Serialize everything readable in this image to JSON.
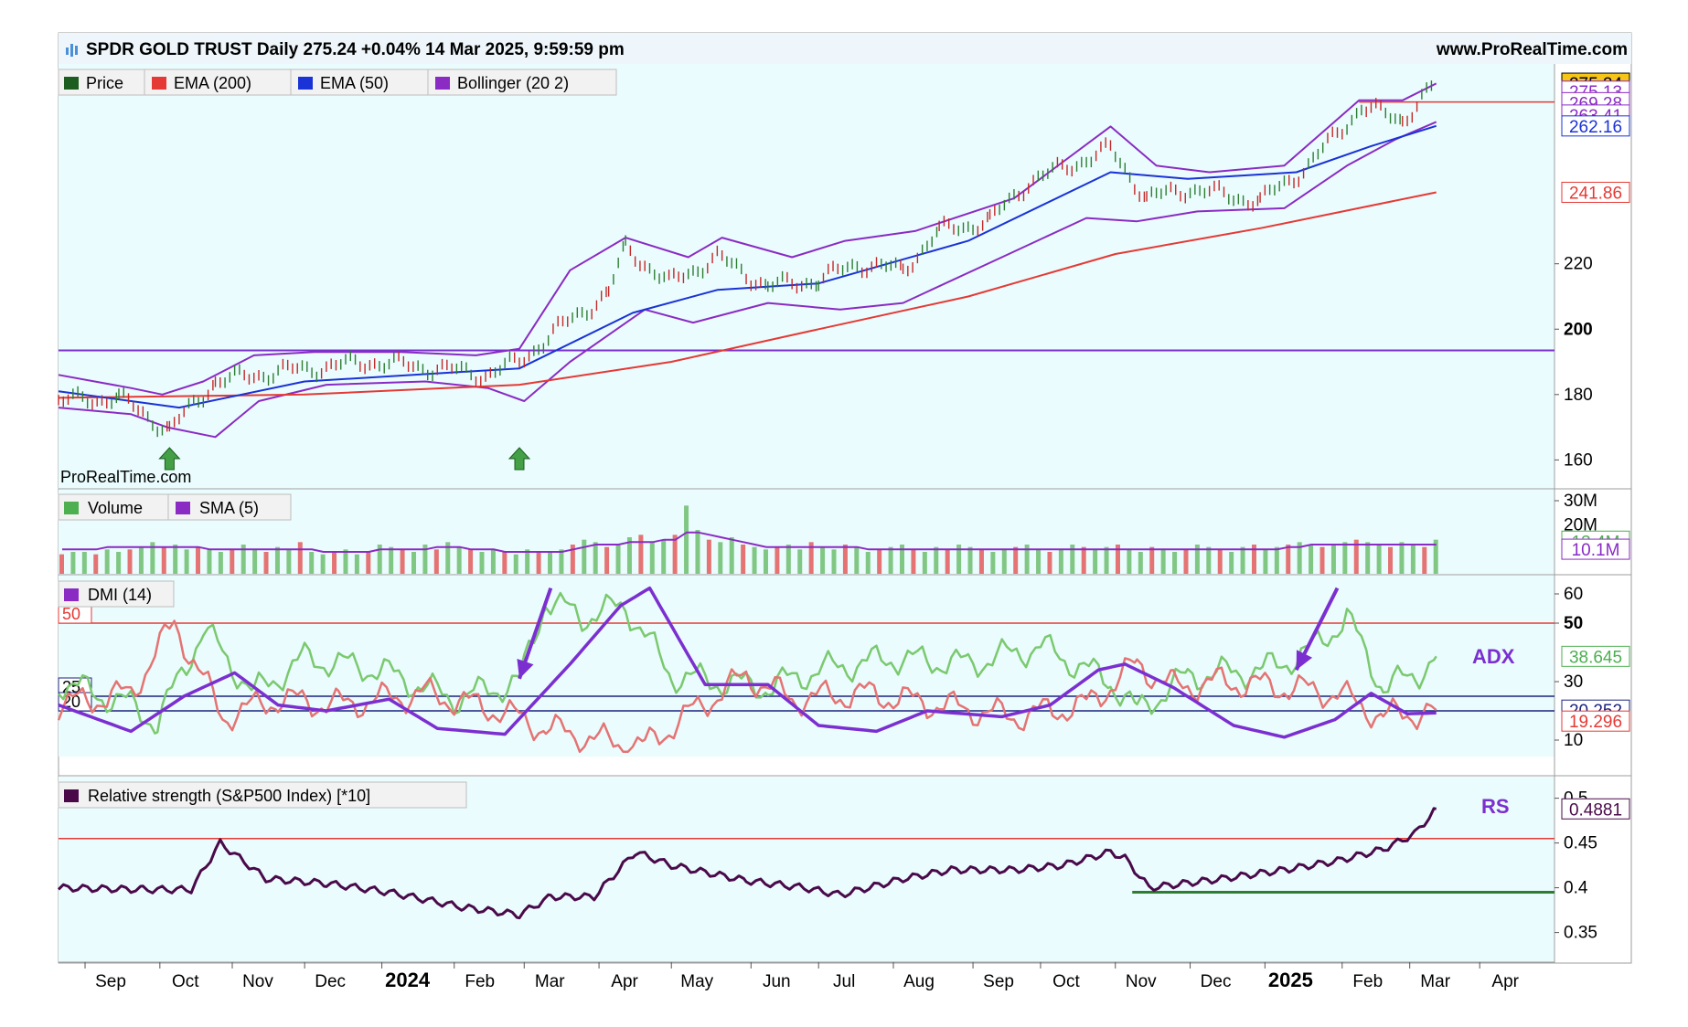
{
  "header": {
    "title": "SPDR GOLD TRUST Daily 275.24 +0.04% 14 Mar 2025, 9:59:59 pm",
    "site": "www.ProRealTime.com",
    "watermark": "ProRealTime.com"
  },
  "chart_data": [
    {
      "type": "line",
      "panel": "price",
      "title": "",
      "legend": [
        "Price",
        "EMA (200)",
        "EMA (50)",
        "Bollinger (20 2)"
      ],
      "colors": {
        "price": "#2e7d32",
        "ema200": "#e53935",
        "ema50": "#1a33d6",
        "bollinger": "#8a2bc4",
        "level": "#7b2fd0"
      },
      "ylim": [
        152,
        280
      ],
      "yticks": [
        160,
        180,
        200,
        220
      ],
      "ytick_labels": [
        "160",
        "180",
        "200",
        "220"
      ],
      "level_line": 193.5,
      "resistance_line": 269.5,
      "markers": [
        {
          "x": "2023-10-06",
          "label": "up-arrow"
        },
        {
          "x": "2024-02-28",
          "label": "up-arrow"
        }
      ],
      "series": [
        {
          "name": "Price",
          "x": [
            "2023-08-21",
            "2023-09-15",
            "2023-10-06",
            "2023-10-25",
            "2023-11-20",
            "2023-12-04",
            "2023-12-28",
            "2024-01-25",
            "2024-02-14",
            "2024-02-28",
            "2024-03-15",
            "2024-04-05",
            "2024-04-12",
            "2024-04-30",
            "2024-05-20",
            "2024-06-10",
            "2024-07-01",
            "2024-07-17",
            "2024-08-05",
            "2024-08-20",
            "2024-09-10",
            "2024-09-26",
            "2024-10-30",
            "2024-11-14",
            "2024-12-02",
            "2024-12-31",
            "2025-01-20",
            "2025-02-11",
            "2025-02-28",
            "2025-03-14"
          ],
          "y": [
            178,
            179,
            169,
            184,
            187,
            188,
            190,
            188,
            186,
            190,
            200,
            211,
            225,
            214,
            222,
            213,
            215,
            220,
            218,
            230,
            233,
            245,
            255,
            240,
            243,
            239,
            250,
            268,
            264,
            275.24
          ]
        },
        {
          "name": "EMA (200)",
          "x": [
            "2023-08-21",
            "2023-12-01",
            "2024-02-28",
            "2024-05-01",
            "2024-07-01",
            "2024-09-01",
            "2024-11-01",
            "2025-01-01",
            "2025-03-14"
          ],
          "y": [
            179,
            180,
            183,
            190,
            200,
            210,
            223,
            231,
            241.86
          ]
        },
        {
          "name": "EMA (50)",
          "x": [
            "2023-08-21",
            "2023-10-10",
            "2023-12-01",
            "2024-02-28",
            "2024-04-15",
            "2024-05-20",
            "2024-07-01",
            "2024-09-01",
            "2024-10-30",
            "2024-12-01",
            "2025-01-15",
            "2025-02-15",
            "2025-03-14"
          ],
          "y": [
            181,
            176,
            184,
            188,
            205,
            212,
            214,
            227,
            248,
            246,
            248,
            256,
            262.16
          ]
        },
        {
          "name": "Bollinger (20 2)",
          "x": [
            "2023-08-21",
            "2023-09-20",
            "2023-10-03",
            "2023-10-20",
            "2023-11-10",
            "2023-12-05",
            "2024-01-10",
            "2024-02-10",
            "2024-02-28",
            "2024-03-20",
            "2024-04-12",
            "2024-05-08",
            "2024-05-22",
            "2024-06-20",
            "2024-07-12",
            "2024-08-10",
            "2024-09-20",
            "2024-10-30",
            "2024-11-18",
            "2024-12-10",
            "2025-01-10",
            "2025-02-10",
            "2025-02-28",
            "2025-03-14"
          ],
          "y": [
            186,
            182,
            180,
            184,
            192,
            193,
            193,
            192,
            194,
            218,
            228,
            222,
            228,
            222,
            227,
            230,
            240,
            262,
            250,
            248,
            250,
            270,
            270,
            275.13
          ]
        },
        {
          "name": "Bollinger (20 2) lower",
          "x": [
            "2023-08-21",
            "2023-09-20",
            "2023-10-05",
            "2023-10-25",
            "2023-11-12",
            "2023-12-10",
            "2024-01-20",
            "2024-02-15",
            "2024-03-01",
            "2024-03-20",
            "2024-04-20",
            "2024-05-10",
            "2024-06-10",
            "2024-07-10",
            "2024-08-05",
            "2024-09-15",
            "2024-10-20",
            "2024-11-10",
            "2024-12-05",
            "2025-01-10",
            "2025-02-05",
            "2025-02-25",
            "2025-03-14"
          ],
          "y": [
            176,
            174,
            170,
            167,
            178,
            183,
            184,
            182,
            178,
            190,
            206,
            202,
            208,
            206,
            208,
            222,
            234,
            233,
            236,
            237,
            250,
            258,
            263.41
          ]
        }
      ],
      "value_labels": [
        {
          "text": "275.24",
          "y": 275.24,
          "color": "#000000",
          "fill": "#f5c518"
        },
        {
          "text": "275.13",
          "y": 272.8,
          "color": "#8a2bc4",
          "fill": "#ffffff"
        },
        {
          "text": "269.28",
          "y": 269.28,
          "color": "#8a2bc4",
          "fill": "#ffffff"
        },
        {
          "text": "263.41",
          "y": 265.5,
          "color": "#8a2bc4",
          "fill": "#ffffff"
        },
        {
          "text": "262.16",
          "y": 262.16,
          "color": "#1a33d6",
          "fill": "#ffffff"
        },
        {
          "text": "241.86",
          "y": 241.86,
          "color": "#e53935",
          "fill": "#ffffff"
        }
      ]
    },
    {
      "type": "bar",
      "panel": "volume",
      "legend": [
        "Volume",
        "SMA (5)"
      ],
      "ylim": [
        0,
        33
      ],
      "yticks": [
        30
      ],
      "ytick_labels": [
        "30M"
      ],
      "level_guides": [
        20
      ],
      "level_guide_labels": [
        "20M"
      ],
      "values_millions": [
        8,
        9,
        9,
        8,
        10,
        9,
        10,
        11,
        13,
        11,
        12,
        10,
        11,
        10,
        9,
        10,
        12,
        10,
        9,
        11,
        10,
        13,
        9,
        8,
        9,
        10,
        8,
        9,
        12,
        11,
        10,
        9,
        12,
        10,
        13,
        11,
        10,
        9,
        10,
        9,
        8,
        10,
        9,
        9,
        10,
        12,
        14,
        13,
        11,
        12,
        15,
        16,
        13,
        14,
        16,
        28,
        18,
        14,
        13,
        15,
        12,
        11,
        10,
        11,
        12,
        10,
        13,
        11,
        10,
        12,
        11,
        9,
        10,
        11,
        12,
        10,
        9,
        11,
        10,
        12,
        11,
        10,
        9,
        10,
        11,
        12,
        10,
        9,
        10,
        12,
        11,
        10,
        11,
        12,
        10,
        9,
        11,
        10,
        9,
        10,
        12,
        11,
        10,
        9,
        11,
        12,
        10,
        11,
        12,
        13,
        12,
        11,
        12,
        13,
        14,
        13,
        12,
        11,
        13,
        12,
        11,
        14
      ],
      "sma": [
        10,
        10,
        10,
        10,
        11,
        11,
        11,
        11,
        11,
        11,
        11,
        11,
        11,
        10,
        10,
        10,
        10,
        10,
        10,
        10,
        10,
        10,
        10,
        9,
        9,
        9,
        9,
        9,
        10,
        10,
        10,
        10,
        10,
        11,
        11,
        11,
        10,
        10,
        10,
        9,
        9,
        9,
        9,
        9,
        9,
        10,
        11,
        12,
        12,
        12,
        13,
        13,
        13,
        14,
        14,
        17,
        17,
        16,
        15,
        14,
        13,
        12,
        11,
        11,
        11,
        11,
        11,
        11,
        11,
        11,
        11,
        10,
        10,
        10,
        10,
        10,
        10,
        10,
        10,
        10,
        10,
        10,
        10,
        10,
        10,
        10,
        10,
        10,
        10,
        10,
        10,
        10,
        10,
        10,
        10,
        10,
        10,
        10,
        10,
        10,
        10,
        10,
        10,
        10,
        10,
        10,
        10,
        10,
        11,
        11,
        12,
        12,
        12,
        12,
        12,
        12,
        12,
        12,
        12,
        12,
        12,
        12
      ],
      "value_labels": [
        {
          "text": "13.4M",
          "y": 13.4,
          "color": "#4caf50"
        },
        {
          "text": "10.1M",
          "y": 10.1,
          "color": "#8a2bc4"
        }
      ]
    },
    {
      "type": "line",
      "panel": "dmi",
      "legend": [
        "DMI (14)"
      ],
      "ylim": [
        5,
        65
      ],
      "yticks": [
        10,
        30,
        50,
        60
      ],
      "ytick_labels": [
        "10",
        "30",
        "50",
        "60"
      ],
      "levels": [
        {
          "y": 50,
          "label": "50",
          "color": "#e53935"
        },
        {
          "y": 25,
          "label": "25",
          "color": "#1a237e"
        },
        {
          "y": 20,
          "label": "20",
          "color": "#1a237e"
        }
      ],
      "annotation": "ADX",
      "arrows": [
        {
          "from_x": "2024-03-12",
          "from_y": 62,
          "to_x": "2024-02-28",
          "to_y": 31
        },
        {
          "from_x": "2025-02-01",
          "from_y": 62,
          "to_x": "2025-01-15",
          "to_y": 34
        }
      ],
      "series": [
        {
          "name": "ADX",
          "x": [
            "2023-08-21",
            "2023-09-20",
            "2023-10-12",
            "2023-11-02",
            "2023-11-20",
            "2023-12-10",
            "2024-01-05",
            "2024-01-25",
            "2024-02-22",
            "2024-03-20",
            "2024-04-10",
            "2024-04-22",
            "2024-05-15",
            "2024-06-10",
            "2024-07-01",
            "2024-07-25",
            "2024-08-15",
            "2024-09-15",
            "2024-10-05",
            "2024-10-25",
            "2024-11-05",
            "2024-11-25",
            "2024-12-20",
            "2025-01-10",
            "2025-01-31",
            "2025-02-15",
            "2025-03-02",
            "2025-03-14"
          ],
          "y": [
            22,
            13,
            25,
            33,
            22,
            20,
            24,
            14,
            12,
            36,
            56,
            62,
            29,
            29,
            15,
            13,
            20,
            18,
            22,
            34,
            36,
            28,
            15,
            11,
            17,
            26,
            19,
            19.296
          ]
        },
        {
          "name": "DI+",
          "x": [
            "2023-08-21",
            "2023-09-20",
            "2023-10-01",
            "2023-10-20",
            "2023-11-10",
            "2023-12-01",
            "2024-01-01",
            "2024-02-01",
            "2024-02-28",
            "2024-03-10",
            "2024-03-25",
            "2024-04-12",
            "2024-05-01",
            "2024-05-20",
            "2024-06-10",
            "2024-07-01",
            "2024-08-01",
            "2024-09-01",
            "2024-10-01",
            "2024-10-30",
            "2024-11-10",
            "2024-12-01",
            "2025-01-01",
            "2025-01-20",
            "2025-02-05",
            "2025-02-20",
            "2025-03-05",
            "2025-03-14"
          ],
          "y": [
            30,
            22,
            16,
            48,
            26,
            38,
            34,
            24,
            30,
            58,
            52,
            56,
            32,
            30,
            28,
            34,
            38,
            36,
            42,
            30,
            20,
            32,
            34,
            40,
            52,
            28,
            32,
            38.645
          ]
        },
        {
          "name": "DI-",
          "x": [
            "2023-08-21",
            "2023-09-20",
            "2023-10-08",
            "2023-10-28",
            "2023-11-20",
            "2023-12-15",
            "2024-01-20",
            "2024-02-20",
            "2024-03-10",
            "2024-04-01",
            "2024-04-20",
            "2024-05-10",
            "2024-06-01",
            "2024-06-20",
            "2024-07-20",
            "2024-08-20",
            "2024-09-20",
            "2024-10-20",
            "2024-11-10",
            "2024-11-25",
            "2024-12-15",
            "2025-01-10",
            "2025-02-01",
            "2025-02-20",
            "2025-03-14"
          ],
          "y": [
            22,
            26,
            50,
            18,
            24,
            22,
            26,
            20,
            14,
            10,
            8,
            20,
            32,
            24,
            26,
            22,
            18,
            22,
            36,
            28,
            30,
            28,
            26,
            18,
            20.252
          ]
        }
      ],
      "value_labels": [
        {
          "text": "38.645",
          "y": 38.645,
          "color": "#4caf50"
        },
        {
          "text": "20.252",
          "y": 20.252,
          "color": "#1a237e"
        },
        {
          "text": "19.296",
          "y": 16.5,
          "color": "#e53935"
        }
      ]
    },
    {
      "type": "line",
      "panel": "relative_strength",
      "legend": [
        "Relative strength (S&P500 Index) [*10]"
      ],
      "ylim": [
        0.32,
        0.52
      ],
      "yticks": [
        0.35,
        0.4,
        0.45,
        0.5
      ],
      "ytick_labels": [
        "0.35",
        "0.4",
        "0.45",
        "0.5"
      ],
      "levels": [
        {
          "y": 0.455,
          "color": "#e53935"
        }
      ],
      "support_line": {
        "from": "2024-11-08",
        "to": "2025-04-30",
        "y": 0.395,
        "color": "#2e7d32"
      },
      "annotation": "RS",
      "series": [
        {
          "name": "Relative strength (S&P500 Index) [*10]",
          "x": [
            "2023-08-21",
            "2023-09-25",
            "2023-10-15",
            "2023-10-27",
            "2023-11-15",
            "2023-12-10",
            "2024-01-05",
            "2024-02-05",
            "2024-02-28",
            "2024-03-12",
            "2024-03-30",
            "2024-04-16",
            "2024-05-01",
            "2024-06-01",
            "2024-06-25",
            "2024-07-10",
            "2024-08-05",
            "2024-08-25",
            "2024-09-20",
            "2024-10-10",
            "2024-10-30",
            "2024-11-05",
            "2024-11-15",
            "2024-12-15",
            "2025-01-10",
            "2025-02-01",
            "2025-02-20",
            "2025-03-05",
            "2025-03-14"
          ],
          "y": [
            0.4,
            0.398,
            0.398,
            0.45,
            0.41,
            0.405,
            0.395,
            0.378,
            0.37,
            0.39,
            0.39,
            0.44,
            0.425,
            0.408,
            0.4,
            0.392,
            0.41,
            0.42,
            0.42,
            0.425,
            0.44,
            0.433,
            0.4,
            0.41,
            0.42,
            0.43,
            0.443,
            0.46,
            0.4881
          ]
        }
      ],
      "value_labels": [
        {
          "text": "0.4881",
          "y": 0.4881,
          "color": "#4a0a4a"
        }
      ]
    }
  ],
  "x_axis": {
    "ticks": [
      {
        "label": "Sep",
        "date": "2023-09-01",
        "bold": false
      },
      {
        "label": "Oct",
        "date": "2023-10-02",
        "bold": false
      },
      {
        "label": "Nov",
        "date": "2023-11-01",
        "bold": false
      },
      {
        "label": "Dec",
        "date": "2023-12-01",
        "bold": false
      },
      {
        "label": "2024",
        "date": "2024-01-02",
        "bold": true
      },
      {
        "label": "Feb",
        "date": "2024-02-01",
        "bold": false
      },
      {
        "label": "Mar",
        "date": "2024-03-01",
        "bold": false
      },
      {
        "label": "Apr",
        "date": "2024-04-01",
        "bold": false
      },
      {
        "label": "May",
        "date": "2024-05-01",
        "bold": false
      },
      {
        "label": "Jun",
        "date": "2024-06-03",
        "bold": false
      },
      {
        "label": "Jul",
        "date": "2024-07-01",
        "bold": false
      },
      {
        "label": "Aug",
        "date": "2024-08-01",
        "bold": false
      },
      {
        "label": "Sep",
        "date": "2024-09-03",
        "bold": false
      },
      {
        "label": "Oct",
        "date": "2024-10-01",
        "bold": false
      },
      {
        "label": "Nov",
        "date": "2024-11-01",
        "bold": false
      },
      {
        "label": "Dec",
        "date": "2024-12-02",
        "bold": false
      },
      {
        "label": "2025",
        "date": "2025-01-02",
        "bold": true
      },
      {
        "label": "Feb",
        "date": "2025-02-03",
        "bold": false
      },
      {
        "label": "Mar",
        "date": "2025-03-03",
        "bold": false
      },
      {
        "label": "Apr",
        "date": "2025-04-01",
        "bold": false
      }
    ]
  }
}
